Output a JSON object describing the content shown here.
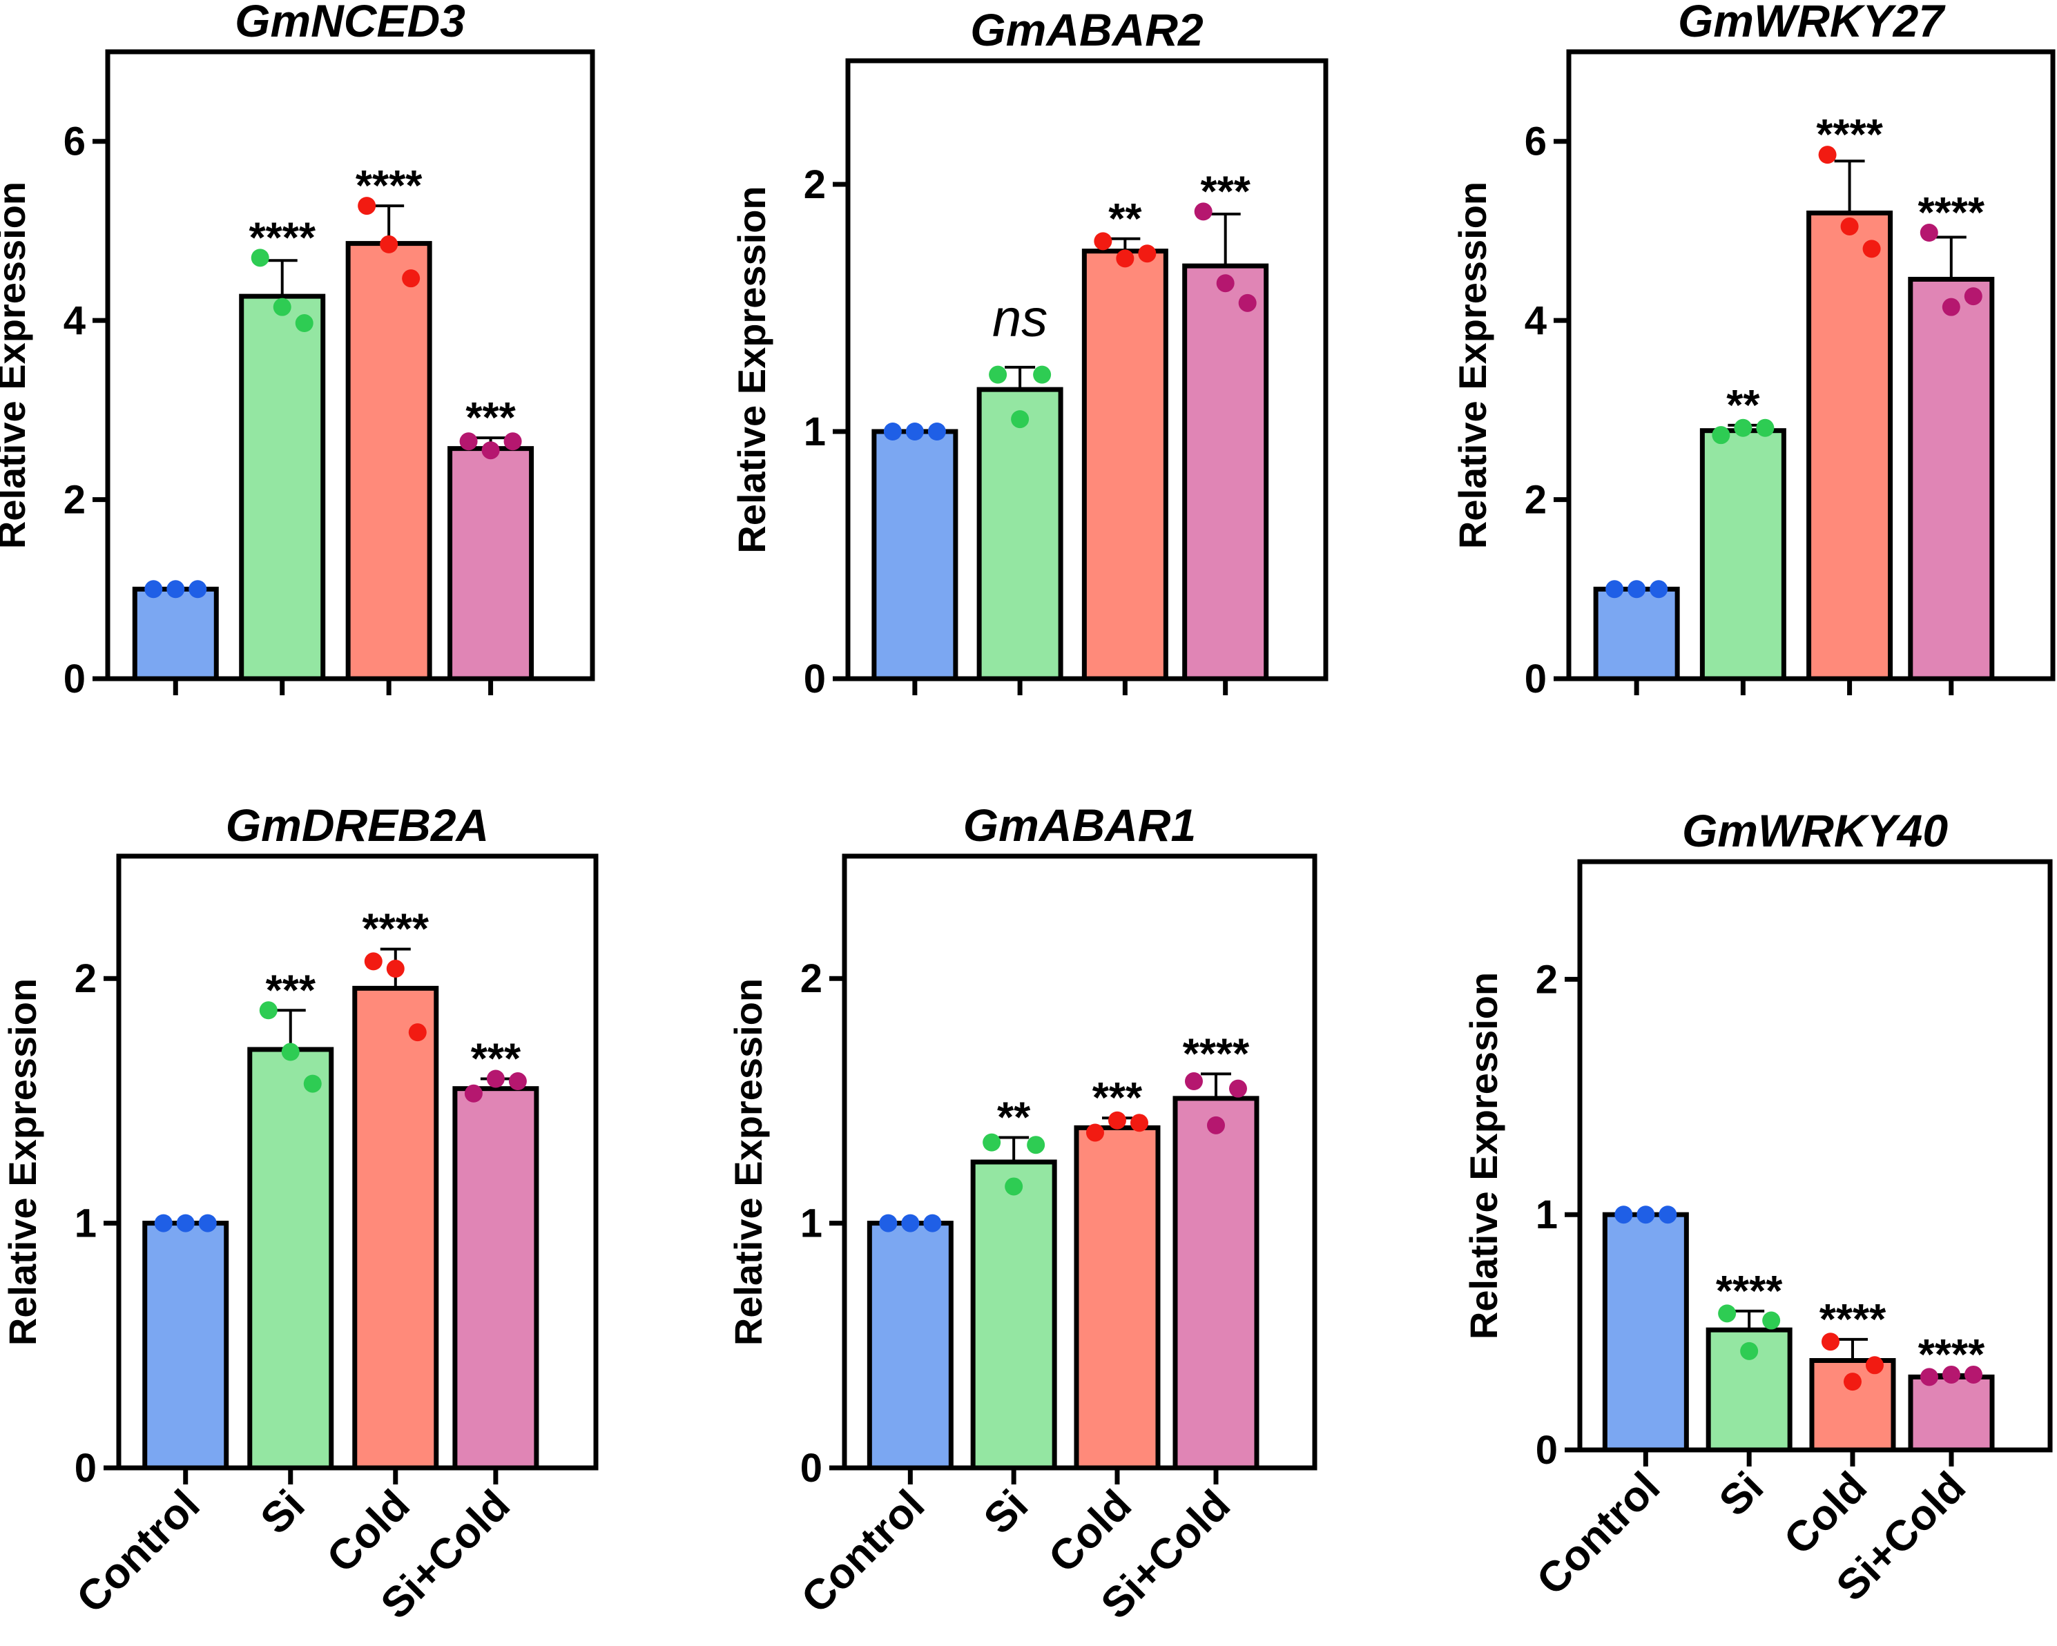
{
  "figure": {
    "y_axis_label": "Relative Expression"
  },
  "group_colors": {
    "Control": {
      "fill": "#7BA7F2",
      "point": "#1F5FE6"
    },
    "Si": {
      "fill": "#94E6A2",
      "point": "#2ECC53"
    },
    "Cold": {
      "fill": "#FF8A7A",
      "point": "#F21B12"
    },
    "Si+Cold": {
      "fill": "#E085B5",
      "point": "#B5176F"
    }
  },
  "chart_data": [
    {
      "type": "bar",
      "title": "GmNCED3",
      "ylabel": "Relative Expression",
      "categories": [
        "Control",
        "Si",
        "Cold",
        "Si+Cold"
      ],
      "values": [
        1.0,
        4.27,
        4.86,
        2.57
      ],
      "errors": [
        0.0,
        0.4,
        0.42,
        0.12
      ],
      "points": [
        [
          1.0,
          1.0,
          1.0
        ],
        [
          4.7,
          4.15,
          3.97
        ],
        [
          5.28,
          4.85,
          4.47
        ],
        [
          2.65,
          2.55,
          2.65
        ]
      ],
      "significance": [
        "",
        "****",
        "****",
        "***"
      ],
      "ylim": [
        0,
        7
      ],
      "yticks": [
        0,
        2,
        4,
        6
      ],
      "show_category_labels": false
    },
    {
      "type": "bar",
      "title": "GmABAR2",
      "ylabel": "Relative Expression",
      "categories": [
        "Control",
        "Si",
        "Cold",
        "Si+Cold"
      ],
      "values": [
        1.0,
        1.17,
        1.73,
        1.67
      ],
      "errors": [
        0.0,
        0.09,
        0.05,
        0.21
      ],
      "points": [
        [
          1.0,
          1.0,
          1.0
        ],
        [
          1.23,
          1.05,
          1.23
        ],
        [
          1.77,
          1.7,
          1.72
        ],
        [
          1.89,
          1.6,
          1.52
        ]
      ],
      "significance": [
        "",
        "ns",
        "**",
        "***"
      ],
      "ylim": [
        0,
        2.5
      ],
      "yticks": [
        0,
        1,
        2
      ],
      "show_category_labels": false
    },
    {
      "type": "bar",
      "title": "GmWRKY27",
      "ylabel": "Relative Expression",
      "categories": [
        "Control",
        "Si",
        "Cold",
        "Si+Cold"
      ],
      "values": [
        1.0,
        2.77,
        5.2,
        4.46
      ],
      "errors": [
        0.0,
        0.06,
        0.58,
        0.47
      ],
      "points": [
        [
          1.0,
          1.0,
          1.0
        ],
        [
          2.72,
          2.8,
          2.8
        ],
        [
          5.85,
          5.05,
          4.8
        ],
        [
          4.98,
          4.15,
          4.27
        ]
      ],
      "significance": [
        "",
        "**",
        "****",
        "****"
      ],
      "ylim": [
        0,
        7
      ],
      "yticks": [
        0,
        2,
        4,
        6
      ],
      "show_category_labels": false
    },
    {
      "type": "bar",
      "title": "GmDREB2A",
      "ylabel": "Relative Expression",
      "categories": [
        "Control",
        "Si",
        "Cold",
        "Si+Cold"
      ],
      "values": [
        1.0,
        1.71,
        1.96,
        1.55
      ],
      "errors": [
        0.0,
        0.16,
        0.16,
        0.04
      ],
      "points": [
        [
          1.0,
          1.0,
          1.0
        ],
        [
          1.87,
          1.7,
          1.57
        ],
        [
          2.07,
          2.04,
          1.78
        ],
        [
          1.53,
          1.59,
          1.58
        ]
      ],
      "significance": [
        "",
        "***",
        "****",
        "***"
      ],
      "ylim": [
        0,
        2.5
      ],
      "yticks": [
        0,
        1,
        2
      ],
      "show_category_labels": true
    },
    {
      "type": "bar",
      "title": "GmABAR1",
      "ylabel": "Relative Expression",
      "categories": [
        "Control",
        "Si",
        "Cold",
        "Si+Cold"
      ],
      "values": [
        1.0,
        1.25,
        1.39,
        1.51
      ],
      "errors": [
        0.0,
        0.1,
        0.04,
        0.1
      ],
      "points": [
        [
          1.0,
          1.0,
          1.0
        ],
        [
          1.33,
          1.15,
          1.32
        ],
        [
          1.37,
          1.42,
          1.41
        ],
        [
          1.58,
          1.4,
          1.55
        ]
      ],
      "significance": [
        "",
        "**",
        "***",
        "****"
      ],
      "ylim": [
        0,
        2.5
      ],
      "yticks": [
        0,
        1,
        2
      ],
      "show_category_labels": true
    },
    {
      "type": "bar",
      "title": "GmWRKY40",
      "ylabel": "Relative Expression",
      "categories": [
        "Control",
        "Si",
        "Cold",
        "Si+Cold"
      ],
      "values": [
        1.0,
        0.51,
        0.38,
        0.31
      ],
      "errors": [
        0.0,
        0.08,
        0.09,
        0.01
      ],
      "points": [
        [
          1.0,
          1.0,
          1.0
        ],
        [
          0.58,
          0.42,
          0.55
        ],
        [
          0.46,
          0.29,
          0.36
        ],
        [
          0.31,
          0.32,
          0.32
        ]
      ],
      "significance": [
        "",
        "****",
        "****",
        "****"
      ],
      "ylim": [
        0,
        2.5
      ],
      "yticks": [
        0,
        1,
        2
      ],
      "show_category_labels": true
    }
  ]
}
